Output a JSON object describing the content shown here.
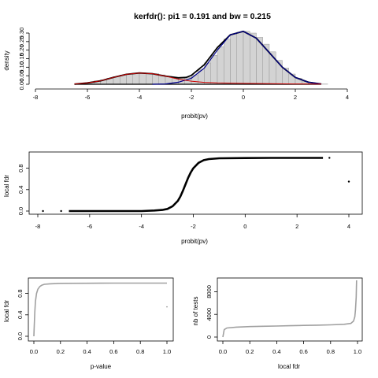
{
  "title": "kerfdr(): pi1 =  0.191  and bw =  0.215",
  "colors": {
    "hist_fill": "#d3d3d3",
    "hist_stroke": "#8c8c8c",
    "total": "#000000",
    "null": "#00008b",
    "alt": "#cc0000",
    "points": "#000000",
    "grey_curve": "#a0a0a0"
  },
  "chart_data": [
    {
      "type": "bar",
      "xlabel": "probit(pv)",
      "ylabel": "density",
      "xlim": [
        -8,
        4
      ],
      "ylim": [
        0,
        0.3
      ],
      "xticks": [
        "-8",
        "-6",
        "-4",
        "-2",
        "0",
        "2",
        "4"
      ],
      "yticks": [
        "0.00",
        "0.05",
        "0.10",
        "0.15",
        "0.20",
        "0.25",
        "0.30"
      ],
      "histogram": {
        "breaks": [
          -6.5,
          -6.25,
          -6.0,
          -5.75,
          -5.5,
          -5.25,
          -5.0,
          -4.75,
          -4.5,
          -4.25,
          -4.0,
          -3.75,
          -3.5,
          -3.25,
          -3.0,
          -2.75,
          -2.5,
          -2.25,
          -2.0,
          -1.75,
          -1.5,
          -1.25,
          -1.0,
          -0.75,
          -0.5,
          -0.25,
          0.0,
          0.25,
          0.5,
          0.75,
          1.0,
          1.25,
          1.5,
          1.75,
          2.0,
          2.25,
          2.5,
          2.75,
          3.0,
          3.25
        ],
        "density": [
          0.002,
          0.006,
          0.011,
          0.019,
          0.026,
          0.035,
          0.045,
          0.054,
          0.061,
          0.066,
          0.067,
          0.065,
          0.062,
          0.055,
          0.046,
          0.04,
          0.036,
          0.04,
          0.055,
          0.085,
          0.125,
          0.17,
          0.22,
          0.265,
          0.295,
          0.305,
          0.31,
          0.3,
          0.275,
          0.235,
          0.19,
          0.14,
          0.095,
          0.06,
          0.035,
          0.016,
          0.008,
          0.003,
          0.001
        ]
      },
      "series": [
        {
          "name": "",
          "role": "total",
          "x": [
            -6.5,
            -6.0,
            -5.5,
            -5.0,
            -4.5,
            -4.0,
            -3.5,
            -3.0,
            -2.5,
            -2.2,
            -2.0,
            -1.5,
            -1.0,
            -0.5,
            0.0,
            0.5,
            1.0,
            1.5,
            2.0,
            2.5,
            3.0
          ],
          "y": [
            0.001,
            0.008,
            0.02,
            0.04,
            0.058,
            0.066,
            0.062,
            0.048,
            0.038,
            0.04,
            0.052,
            0.115,
            0.215,
            0.29,
            0.31,
            0.27,
            0.185,
            0.1,
            0.04,
            0.012,
            0.002
          ]
        },
        {
          "name": "",
          "role": "null",
          "x": [
            -3.5,
            -3.0,
            -2.5,
            -2.0,
            -1.5,
            -1.0,
            -0.5,
            0.0,
            0.5,
            1.0,
            1.5,
            2.0,
            2.5,
            3.0
          ],
          "y": [
            0.0,
            0.002,
            0.012,
            0.035,
            0.095,
            0.2,
            0.29,
            0.31,
            0.27,
            0.185,
            0.1,
            0.04,
            0.012,
            0.002
          ]
        },
        {
          "name": "",
          "role": "alternative",
          "x": [
            -6.5,
            -6.0,
            -5.5,
            -5.0,
            -4.5,
            -4.0,
            -3.5,
            -3.0,
            -2.5,
            -2.0,
            -1.5,
            -1.0,
            0.0,
            1.0,
            2.0,
            3.0
          ],
          "y": [
            0.001,
            0.008,
            0.02,
            0.04,
            0.058,
            0.066,
            0.062,
            0.048,
            0.03,
            0.018,
            0.011,
            0.008,
            0.005,
            0.003,
            0.002,
            0.001
          ]
        }
      ]
    },
    {
      "type": "scatter",
      "xlabel": "probit(pv)",
      "ylabel": "local fdr",
      "xlim": [
        -8,
        4
      ],
      "ylim": [
        0,
        1
      ],
      "xticks": [
        "-8",
        "-6",
        "-4",
        "-2",
        "0",
        "2",
        "4"
      ],
      "yticks": [
        "0.0",
        "0.4",
        "0.8"
      ],
      "curve": {
        "x": [
          -6.8,
          -6.0,
          -5.0,
          -4.0,
          -3.5,
          -3.2,
          -3.0,
          -2.8,
          -2.6,
          -2.5,
          -2.4,
          -2.3,
          -2.2,
          -2.1,
          -2.0,
          -1.8,
          -1.6,
          -1.4,
          -1.0,
          0.0,
          1.0,
          2.0,
          3.0
        ],
        "y": [
          0.0,
          0.0,
          0.0,
          0.0,
          0.01,
          0.02,
          0.04,
          0.09,
          0.19,
          0.27,
          0.38,
          0.5,
          0.62,
          0.72,
          0.8,
          0.9,
          0.95,
          0.97,
          0.985,
          0.99,
          0.992,
          0.993,
          0.993
        ]
      },
      "outliers": [
        {
          "x": -7.8,
          "y": 0.0
        },
        {
          "x": -7.1,
          "y": 0.0
        },
        {
          "x": 3.25,
          "y": 0.993
        },
        {
          "x": 4.0,
          "y": 0.55
        }
      ]
    },
    {
      "type": "line",
      "xlabel": "p-value",
      "ylabel": "local fdr",
      "xlim": [
        0,
        1
      ],
      "ylim": [
        0,
        1
      ],
      "xticks": [
        "0.0",
        "0.2",
        "0.4",
        "0.6",
        "0.8",
        "1.0"
      ],
      "yticks": [
        "0.0",
        "0.4",
        "0.8"
      ],
      "curve": {
        "x": [
          0.0,
          0.003,
          0.007,
          0.012,
          0.02,
          0.03,
          0.045,
          0.06,
          0.08,
          0.12,
          0.2,
          0.4,
          0.6,
          0.8,
          1.0
        ],
        "y": [
          0.0,
          0.2,
          0.45,
          0.65,
          0.8,
          0.88,
          0.93,
          0.955,
          0.97,
          0.98,
          0.988,
          0.99,
          0.992,
          0.993,
          0.993
        ]
      },
      "outliers": [
        {
          "x": 1.0,
          "y": 0.55
        }
      ]
    },
    {
      "type": "line",
      "xlabel": "local fdr",
      "ylabel": "nb of tests",
      "xlim": [
        0,
        1
      ],
      "ylim": [
        0,
        10000
      ],
      "xticks": [
        "0.0",
        "0.2",
        "0.4",
        "0.6",
        "0.8",
        "1.0"
      ],
      "yticks": [
        "0",
        "4000",
        "8000"
      ],
      "curve": {
        "x": [
          0.0,
          0.01,
          0.03,
          0.1,
          0.2,
          0.3,
          0.4,
          0.5,
          0.6,
          0.7,
          0.8,
          0.9,
          0.95,
          0.97,
          0.98,
          0.985,
          0.99,
          0.993
        ],
        "y": [
          0,
          1300,
          1600,
          1750,
          1850,
          1900,
          1950,
          2000,
          2050,
          2100,
          2150,
          2250,
          2400,
          2800,
          3600,
          4800,
          7000,
          10000
        ]
      }
    }
  ]
}
